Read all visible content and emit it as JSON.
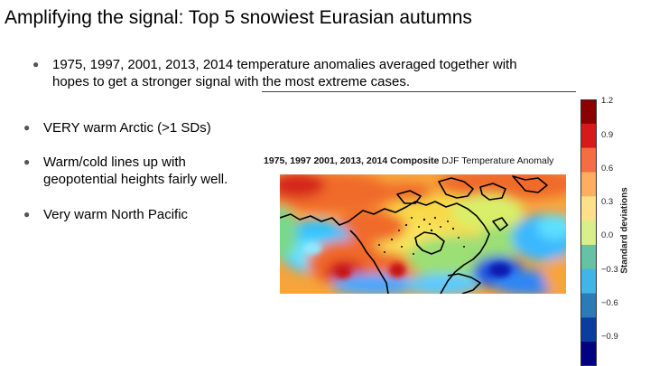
{
  "slide": {
    "title": "Amplifying the signal: Top 5 snowiest Eurasian autumns",
    "sub_bullet": "1975, 1997, 2001, 2013, 2014 temperature anomalies averaged together with\nhopes to get a stronger signal with the most extreme cases.",
    "bullets": [
      "VERY warm Arctic (>1 SDs)",
      "Warm/cold lines up with\ngeopotential heights fairly well.",
      "Very warm North Pacific"
    ],
    "bullet_glyph": "●"
  },
  "figure": {
    "title_bold": "1975, 1997 2001, 2013, 2014 Composite",
    "title_normal": " DJF Temperature Anomaly",
    "colorbar": {
      "label": "Standard deviations",
      "ticks": [
        "1.2",
        "0.9",
        "0.6",
        "0.3",
        "0.0",
        "−0.3",
        "−0.6",
        "−0.9"
      ],
      "colors_top_to_bottom": [
        "#8b0000",
        "#d7191c",
        "#f46d43",
        "#fdae61",
        "#fee08b",
        "#d9ef8b",
        "#66c2a5",
        "#41b6e6",
        "#2c7bb6",
        "#0b3d9e",
        "#000080"
      ]
    }
  }
}
